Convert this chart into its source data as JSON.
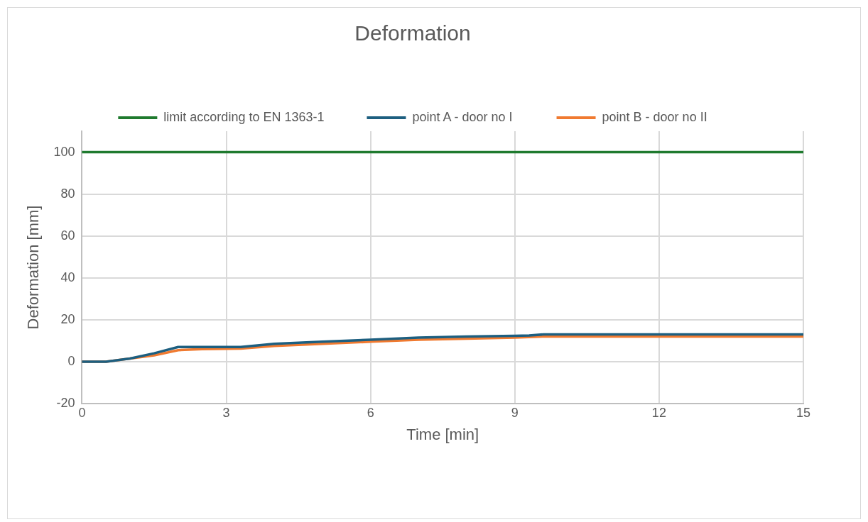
{
  "chart_data": {
    "type": "line",
    "title": "Deformation",
    "xlabel": "Time [min]",
    "ylabel": "Deformation [mm]",
    "xlim": [
      0,
      15
    ],
    "xticks": [
      0,
      3,
      6,
      9,
      12,
      15
    ],
    "ylim": [
      -20,
      110
    ],
    "yticks": [
      -20,
      0,
      20,
      40,
      60,
      80,
      100
    ],
    "grid": true,
    "legend": "top",
    "marker": "none",
    "line_style": "solid",
    "series": [
      {
        "name": "limit according to EN 1363-1",
        "color": "#1f7a2e",
        "x": [
          0,
          15
        ],
        "values": [
          100,
          100
        ]
      },
      {
        "name": "point A - door no I",
        "color": "#1d5f80",
        "x": [
          0,
          0.5,
          1,
          1.5,
          2,
          2.5,
          3.3,
          4,
          5,
          6,
          7,
          8,
          9,
          9.3,
          9.6,
          15
        ],
        "values": [
          0,
          0,
          1.5,
          4,
          7,
          7,
          7,
          8.5,
          9.5,
          10.5,
          11.5,
          12,
          12.3,
          12.5,
          13,
          13
        ]
      },
      {
        "name": "point B - door no II",
        "color": "#f07a30",
        "x": [
          0,
          0.5,
          1,
          1.5,
          2,
          2.5,
          3.3,
          4,
          5,
          6,
          7,
          8,
          9,
          9.6,
          15
        ],
        "values": [
          0,
          0,
          1.5,
          3,
          5.5,
          6,
          6.2,
          7.5,
          8.5,
          9.5,
          10.5,
          11,
          11.5,
          12,
          12
        ]
      }
    ]
  }
}
